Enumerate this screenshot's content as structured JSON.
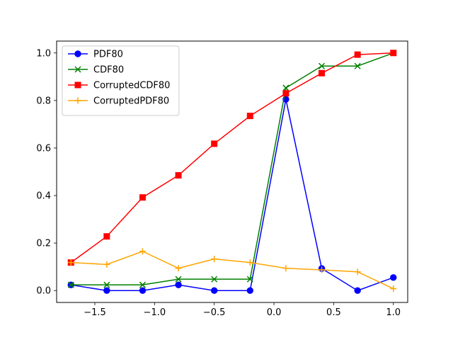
{
  "chart_data": {
    "type": "line",
    "title": "",
    "xlabel": "",
    "ylabel": "",
    "xlim": [
      -1.82,
      1.12
    ],
    "ylim": [
      -0.05,
      1.05
    ],
    "xticks": [
      -1.5,
      -1.0,
      -0.5,
      0.0,
      0.5,
      1.0
    ],
    "xtick_labels": [
      "−1.5",
      "−1.0",
      "−0.5",
      "0.0",
      "0.5",
      "1.0"
    ],
    "yticks": [
      0.0,
      0.2,
      0.4,
      0.6,
      0.8,
      1.0
    ],
    "ytick_labels": [
      "0.0",
      "0.2",
      "0.4",
      "0.6",
      "0.8",
      "1.0"
    ],
    "grid": false,
    "legend_position": "top-left",
    "x": [
      -1.7,
      -1.4,
      -1.1,
      -0.8,
      -0.5,
      -0.2,
      0.1,
      0.4,
      0.7,
      1.0
    ],
    "series": [
      {
        "name": "PDF80",
        "color": "#0000ff",
        "marker": "circle",
        "values": [
          0.024,
          0.0,
          0.0,
          0.024,
          0.0,
          0.0,
          0.805,
          0.093,
          0.0,
          0.055
        ]
      },
      {
        "name": "CDF80",
        "color": "#008000",
        "marker": "x",
        "values": [
          0.024,
          0.024,
          0.024,
          0.048,
          0.048,
          0.048,
          0.853,
          0.945,
          0.945,
          1.0
        ]
      },
      {
        "name": "CorruptedCDF80",
        "color": "#ff0000",
        "marker": "square",
        "values": [
          0.118,
          0.228,
          0.392,
          0.485,
          0.618,
          0.735,
          0.83,
          0.915,
          0.993,
          1.0
        ]
      },
      {
        "name": "CorruptedPDF80",
        "color": "#ffa500",
        "marker": "plus",
        "values": [
          0.118,
          0.11,
          0.165,
          0.094,
          0.133,
          0.118,
          0.094,
          0.087,
          0.079,
          0.008
        ]
      }
    ]
  }
}
